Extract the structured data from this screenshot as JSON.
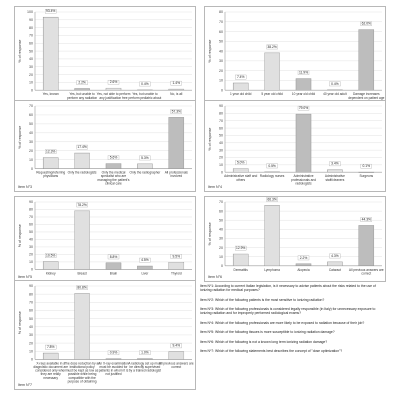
{
  "y_axis_label": "% of response",
  "chart_data": [
    {
      "type": "bar",
      "item_label": "Item N°1",
      "categories": [
        "Yes, known",
        "Yes, but unable to perform any radiation free 10",
        "Yes, not able to perform any justification free 175 calc",
        "Yes, but unable to perform pediatric about free 2+ calc",
        "No, is all"
      ],
      "values": [
        93.4,
        2.2,
        2.6,
        0.4,
        1.4
      ],
      "value_labels": [
        "93.4%",
        "2.2%",
        "2.6%",
        "0.4%",
        "1.4%"
      ],
      "ylim": [
        0,
        100
      ],
      "yticks": [
        0,
        10,
        20,
        30,
        40,
        50,
        60,
        70,
        80,
        90,
        100
      ],
      "patterns": [
        "dots",
        "solid",
        "dots",
        "solid",
        "dots"
      ]
    },
    {
      "type": "bar",
      "item_label": "Item N°2",
      "categories": [
        "1 year old child",
        "5 year old child",
        "10 year old child",
        "40 year old adult",
        "Damage increases dependent on patient age at time"
      ],
      "values": [
        7.4,
        38.2,
        11.9,
        0.4,
        62.0
      ],
      "value_labels": [
        "7.4%",
        "38.2%",
        "11.9%",
        "0.4%",
        "62.0%"
      ],
      "ylim": [
        0,
        80
      ],
      "yticks": [
        0,
        10,
        20,
        30,
        40,
        50,
        60,
        70,
        80
      ],
      "patterns": [
        "dots",
        "dots",
        "solid",
        "dots",
        "solid"
      ]
    },
    {
      "type": "bar",
      "item_label": "Item N°3",
      "categories": [
        "Requesting/referring physicians",
        "Only the radiologists",
        "Only the medical specialist who are managing the patient's clinical care",
        "Only the radiographer",
        "All professionals involved"
      ],
      "values": [
        12.3,
        17.4,
        5.6,
        5.3,
        57.3
      ],
      "value_labels": [
        "12.3%",
        "17.4%",
        "5.6%",
        "5.3%",
        "57.3%"
      ],
      "ylim": [
        0,
        70
      ],
      "yticks": [
        0,
        10,
        20,
        30,
        40,
        50,
        60,
        70
      ],
      "patterns": [
        "dots",
        "dots",
        "solid",
        "dots",
        "solid"
      ]
    },
    {
      "type": "bar",
      "item_label": "Item N°4",
      "categories": [
        "Administrative staff and others",
        "Radiology nurses",
        "Administrative professionals and radiologists",
        "Administrative staff/cleaners",
        "Surgeons"
      ],
      "values": [
        5.0,
        0.5,
        79.0,
        3.4,
        0.1
      ],
      "value_labels": [
        "5.0%",
        "0.5%",
        "79.0%",
        "3.4%",
        "0.1%"
      ],
      "ylim": [
        0,
        90
      ],
      "yticks": [
        0,
        10,
        20,
        30,
        40,
        50,
        60,
        70,
        80,
        90
      ],
      "patterns": [
        "dots",
        "solid",
        "solid",
        "dots",
        "solid"
      ]
    },
    {
      "type": "bar",
      "item_label": "Item N°5",
      "categories": [
        "Kidney",
        "Breast",
        "Brain",
        "Liver",
        "Thyroid"
      ],
      "values": [
        10.5,
        78.2,
        8.8,
        4.5,
        9.5
      ],
      "value_labels": [
        "10.5%",
        "78.2%",
        "8.8%",
        "4.5%",
        "9.5%"
      ],
      "ylim": [
        0,
        90
      ],
      "yticks": [
        0,
        10,
        20,
        30,
        40,
        50,
        60,
        70,
        80,
        90
      ],
      "patterns": [
        "dots",
        "dots",
        "solid",
        "solid",
        "dots"
      ]
    },
    {
      "type": "bar",
      "item_label": "Item N°6",
      "categories": [
        "Dermatitis",
        "Lymphoma",
        "Alopecia",
        "Cataract",
        "All previous answers are correct"
      ],
      "values": [
        12.9,
        66.3,
        2.2,
        4.3,
        44.3
      ],
      "value_labels": [
        "12.9%",
        "66.3%",
        "2.2%",
        "4.3%",
        "44.3%"
      ],
      "ylim": [
        0,
        70
      ],
      "yticks": [
        0,
        10,
        20,
        30,
        40,
        50,
        60,
        70
      ],
      "patterns": [
        "dots",
        "dots",
        "solid",
        "dots",
        "solid"
      ]
    },
    {
      "type": "bar",
      "item_label": "Item N°7",
      "categories": [
        "X-rays available in a diagnostic document are considered only when they are really necessary",
        "The dose reduction by an institutional policy must be kept as low as possible while being compatible with the purpose of obtaining diagnostic information",
        "An X-ray examination must be avoided for patients in whom it is not justified",
        "A radiology set up must be directly supervised by a trained radiologist",
        "All previous answers are correct"
      ],
      "values": [
        7.8,
        80.8,
        0.9,
        1.0,
        9.4
      ],
      "value_labels": [
        "7.8%",
        "80.8%",
        "0.9%",
        "1.0%",
        "9.4%"
      ],
      "ylim": [
        0,
        90
      ],
      "yticks": [
        0,
        10,
        20,
        30,
        40,
        50,
        60,
        70,
        80,
        90
      ],
      "patterns": [
        "dots",
        "dots",
        "solid",
        "solid",
        "dots"
      ]
    }
  ],
  "legend_items": [
    "Item Nº1: According to current Italian legislation, is it necessary to advise patients about the risks related to the use of ionizing radiation for medical purposes?",
    "Item Nº2: Which of the following patients is the most sensitive to ionizing radiation?",
    "Item Nº3: Which of the following professionals is considered legally responsible (in Italy) for unnecessary exposure to ionizing radiation and for improperly performed radiological exams?",
    "Item Nº4: Which of the following professionals are more likely to be exposed to radiation because of their job?",
    "Item Nº5: Which of the following tissues is more susceptible to ionizing radiation damage?",
    "Item Nº6: Which of the following is not a known long term ionizing radiation damage?",
    "Item Nº7: Which of the following statements best describes the concept of \"dose optimization\"?"
  ],
  "colors": {
    "bar_fill": "#bdbdbd",
    "bar_stroke": "#8c8c8c",
    "grid": "#e2e2e2",
    "axis": "#9a9a9a",
    "panel_border": "#b8b8b8"
  }
}
